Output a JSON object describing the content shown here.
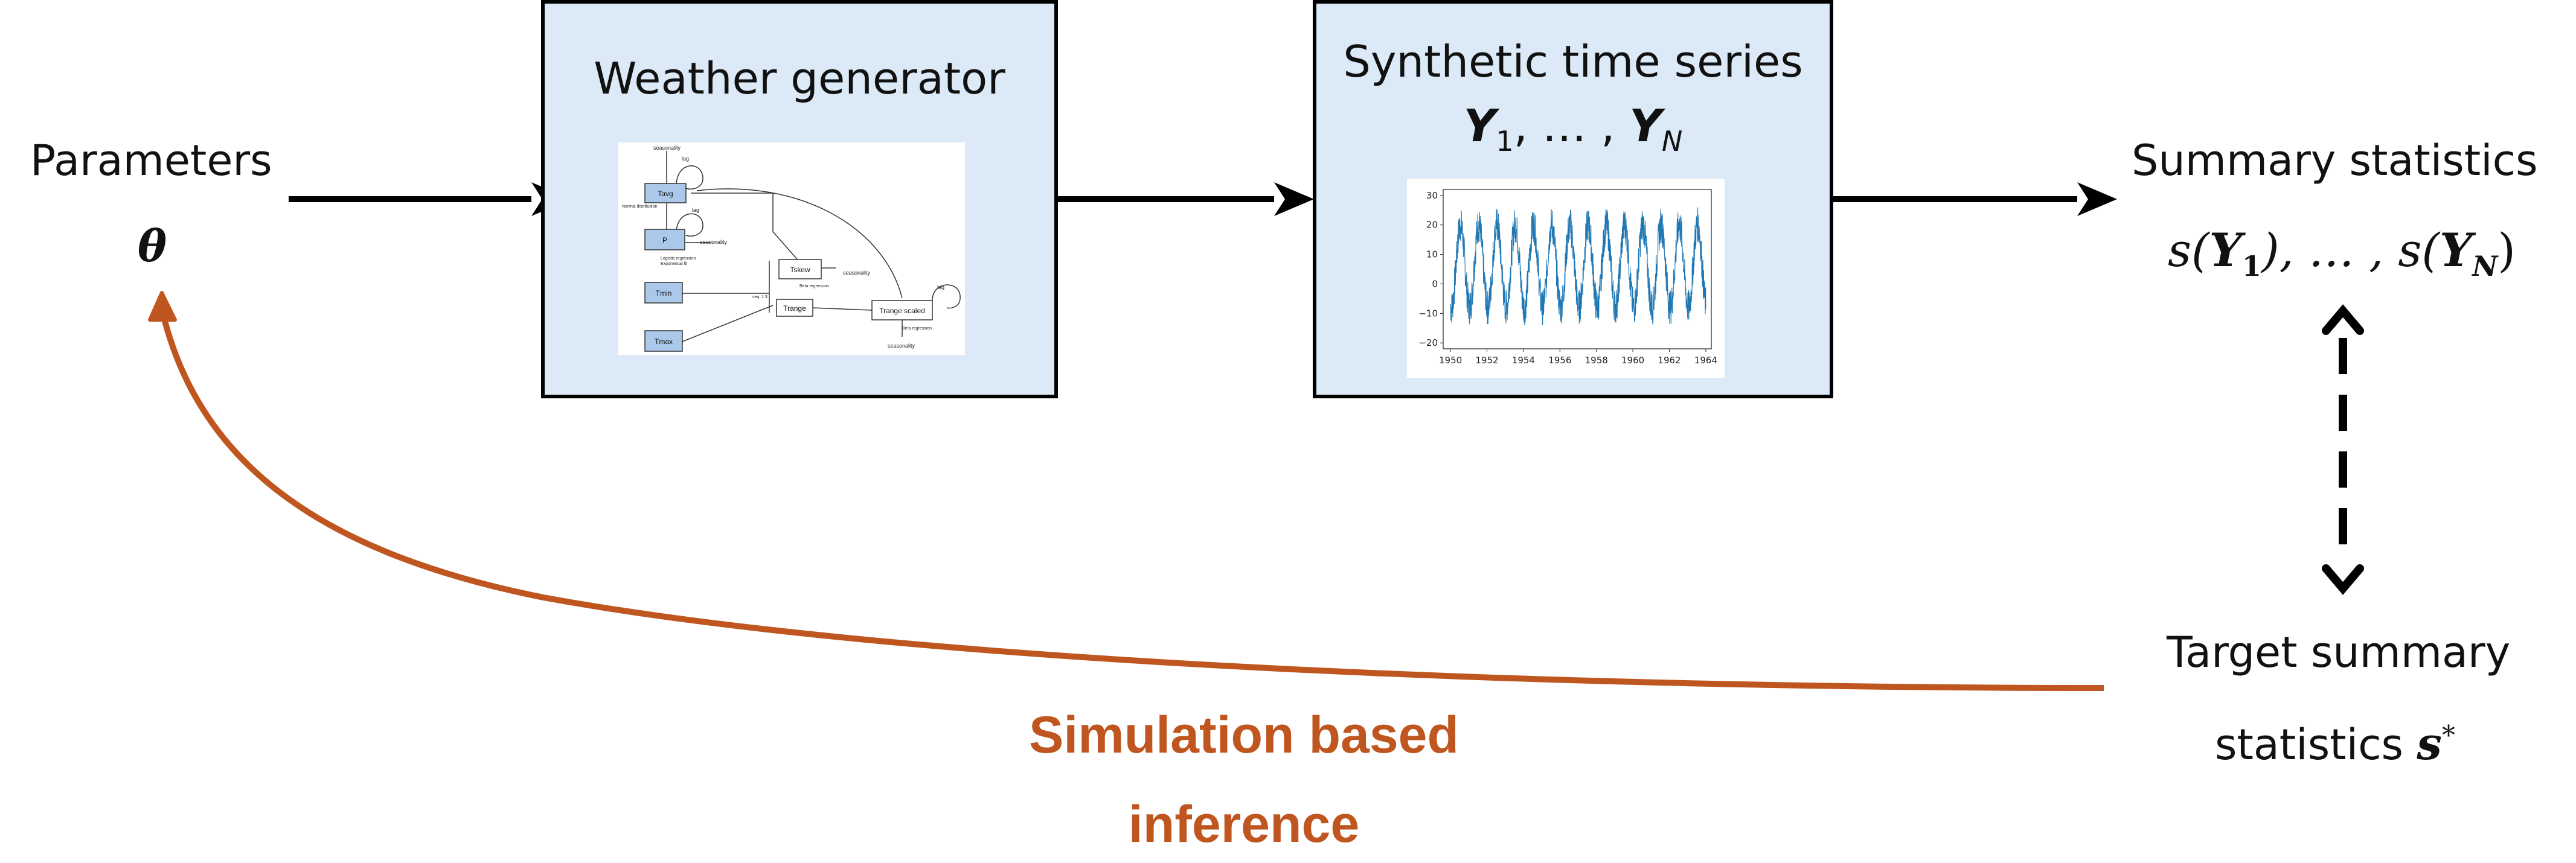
{
  "colors": {
    "box_fill": "#dce9f6",
    "arrow": "#000000",
    "inference_arrow": "#c0561f",
    "mini_node": "#a9c8ea",
    "series_line": "#1f77b4"
  },
  "parameters": {
    "label": "Parameters",
    "symbol": "θ"
  },
  "weather_generator": {
    "title": "Weather generator",
    "mini_diagram": {
      "nodes": [
        "Tavg",
        "P",
        "Tmin",
        "Tmax",
        "Tskew",
        "Trange",
        "Trange scaled"
      ],
      "annotations": [
        "seasonality",
        "lag",
        "seasonality",
        "lag",
        "seasonality",
        "seasonality",
        "lag",
        "seasonality"
      ]
    }
  },
  "synthetic": {
    "title": "Synthetic time series",
    "symbol_parts": [
      "Y",
      "1",
      ", … , ",
      "Y",
      "N"
    ],
    "chart_data": {
      "type": "line",
      "x_ticks": [
        "1950",
        "1952",
        "1954",
        "1956",
        "1958",
        "1960",
        "1962",
        "1964"
      ],
      "y_ticks": [
        "30",
        "20",
        "10",
        "0",
        "−10",
        "−20"
      ],
      "xlim": [
        1949.6,
        1964.3
      ],
      "ylim": [
        -22,
        32
      ],
      "series": [
        {
          "start_year": 1950,
          "end_year": 1964,
          "mean": 6,
          "amplitude": 14,
          "noise": 6
        }
      ]
    }
  },
  "summary": {
    "label": "Summary statistics",
    "expr_parts": [
      "s(",
      "Y",
      "1",
      "), … , s(",
      "Y",
      "N",
      ")"
    ]
  },
  "target": {
    "line1": "Target summary",
    "line2": "statistics",
    "symbol": "s",
    "superscript": "*"
  },
  "inference": {
    "line1": "Simulation based",
    "line2": "inference"
  }
}
